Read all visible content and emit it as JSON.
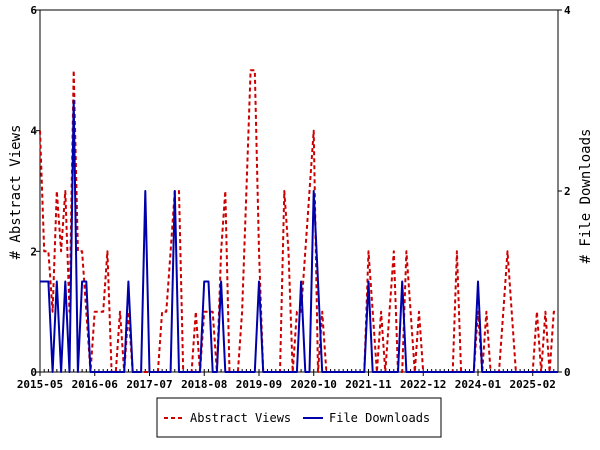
{
  "chart_data": {
    "type": "line",
    "xlabel": "",
    "ylabel_left": "# Abstract Views",
    "ylabel_right": "# File Downloads",
    "x_tick_labels": [
      "2015-05",
      "2016-06",
      "2017-07",
      "2018-08",
      "2019-09",
      "2020-10",
      "2021-11",
      "2022-12",
      "2024-01",
      "2025-02"
    ],
    "x_range": [
      "2015-05",
      "2025-08"
    ],
    "y_left": {
      "min": 0,
      "max": 6,
      "ticks": [
        0,
        2,
        4,
        6
      ]
    },
    "y_right": {
      "min": 0,
      "max": 4,
      "ticks": [
        0,
        2,
        4
      ]
    },
    "grid": false,
    "legend_position": "bottom-center",
    "series": [
      {
        "name": "Abstract Views",
        "axis": "left",
        "color": "#cc0000",
        "style": "dashed",
        "points": [
          [
            "2015-05",
            4
          ],
          [
            "2015-06",
            2
          ],
          [
            "2015-07",
            2
          ],
          [
            "2015-08",
            1
          ],
          [
            "2015-09",
            3
          ],
          [
            "2015-10",
            2
          ],
          [
            "2015-11",
            3
          ],
          [
            "2015-12",
            1
          ],
          [
            "2016-01",
            5
          ],
          [
            "2016-02",
            2
          ],
          [
            "2016-03",
            2
          ],
          [
            "2016-04",
            1
          ],
          [
            "2016-05",
            0
          ],
          [
            "2016-06",
            1
          ],
          [
            "2016-07",
            1
          ],
          [
            "2016-08",
            1
          ],
          [
            "2016-09",
            2
          ],
          [
            "2016-10",
            0
          ],
          [
            "2016-11",
            0
          ],
          [
            "2016-12",
            1
          ],
          [
            "2017-01",
            0
          ],
          [
            "2017-02",
            1
          ],
          [
            "2017-03",
            0
          ],
          [
            "2017-04",
            0
          ],
          [
            "2017-05",
            0
          ],
          [
            "2017-06",
            0
          ],
          [
            "2017-07",
            0
          ],
          [
            "2017-08",
            0
          ],
          [
            "2017-09",
            0
          ],
          [
            "2017-10",
            1
          ],
          [
            "2017-11",
            1
          ],
          [
            "2017-12",
            2
          ],
          [
            "2018-01",
            3
          ],
          [
            "2018-02",
            3
          ],
          [
            "2018-03",
            0
          ],
          [
            "2018-04",
            0
          ],
          [
            "2018-05",
            0
          ],
          [
            "2018-06",
            1
          ],
          [
            "2018-07",
            0
          ],
          [
            "2018-08",
            1
          ],
          [
            "2018-09",
            1
          ],
          [
            "2018-10",
            1
          ],
          [
            "2018-11",
            0
          ],
          [
            "2018-12",
            2
          ],
          [
            "2019-01",
            3
          ],
          [
            "2019-02",
            0
          ],
          [
            "2019-03",
            0
          ],
          [
            "2019-04",
            0
          ],
          [
            "2019-05",
            1
          ],
          [
            "2019-06",
            3
          ],
          [
            "2019-07",
            5
          ],
          [
            "2019-08",
            5
          ],
          [
            "2019-09",
            2
          ],
          [
            "2019-10",
            0
          ],
          [
            "2019-11",
            0
          ],
          [
            "2019-12",
            0
          ],
          [
            "2020-01",
            0
          ],
          [
            "2020-02",
            0
          ],
          [
            "2020-03",
            3
          ],
          [
            "2020-04",
            2
          ],
          [
            "2020-05",
            0
          ],
          [
            "2020-06",
            1
          ],
          [
            "2020-07",
            1
          ],
          [
            "2020-08",
            2
          ],
          [
            "2020-09",
            3
          ],
          [
            "2020-10",
            4
          ],
          [
            "2020-11",
            0
          ],
          [
            "2020-12",
            1
          ],
          [
            "2021-01",
            0
          ],
          [
            "2021-02",
            0
          ],
          [
            "2021-03",
            0
          ],
          [
            "2021-04",
            0
          ],
          [
            "2021-05",
            0
          ],
          [
            "2021-06",
            0
          ],
          [
            "2021-07",
            0
          ],
          [
            "2021-08",
            0
          ],
          [
            "2021-09",
            0
          ],
          [
            "2021-10",
            0
          ],
          [
            "2021-11",
            2
          ],
          [
            "2021-12",
            1
          ],
          [
            "2022-01",
            0
          ],
          [
            "2022-02",
            1
          ],
          [
            "2022-03",
            0
          ],
          [
            "2022-04",
            1
          ],
          [
            "2022-05",
            2
          ],
          [
            "2022-06",
            0
          ],
          [
            "2022-07",
            0
          ],
          [
            "2022-08",
            2
          ],
          [
            "2022-09",
            1
          ],
          [
            "2022-10",
            0
          ],
          [
            "2022-11",
            1
          ],
          [
            "2022-12",
            0
          ],
          [
            "2023-01",
            0
          ],
          [
            "2023-02",
            0
          ],
          [
            "2023-03",
            0
          ],
          [
            "2023-04",
            0
          ],
          [
            "2023-05",
            0
          ],
          [
            "2023-06",
            0
          ],
          [
            "2023-07",
            0
          ],
          [
            "2023-08",
            2
          ],
          [
            "2023-09",
            0
          ],
          [
            "2023-10",
            0
          ],
          [
            "2023-11",
            0
          ],
          [
            "2023-12",
            0
          ],
          [
            "2024-01",
            1
          ],
          [
            "2024-02",
            0
          ],
          [
            "2024-03",
            1
          ],
          [
            "2024-04",
            0
          ],
          [
            "2024-05",
            0
          ],
          [
            "2024-06",
            0
          ],
          [
            "2024-07",
            1
          ],
          [
            "2024-08",
            2
          ],
          [
            "2024-09",
            1
          ],
          [
            "2024-10",
            0
          ],
          [
            "2024-11",
            0
          ],
          [
            "2024-12",
            0
          ],
          [
            "2025-01",
            0
          ],
          [
            "2025-02",
            0
          ],
          [
            "2025-03",
            1
          ],
          [
            "2025-04",
            0
          ],
          [
            "2025-05",
            1
          ],
          [
            "2025-06",
            0
          ],
          [
            "2025-07",
            1
          ],
          [
            "2025-08",
            1
          ]
        ]
      },
      {
        "name": "File Downloads",
        "axis": "right",
        "color": "#0000aa",
        "style": "solid",
        "points": [
          [
            "2015-05",
            1
          ],
          [
            "2015-06",
            1
          ],
          [
            "2015-07",
            1
          ],
          [
            "2015-08",
            0
          ],
          [
            "2015-09",
            1
          ],
          [
            "2015-10",
            0
          ],
          [
            "2015-11",
            1
          ],
          [
            "2015-12",
            0
          ],
          [
            "2016-01",
            3
          ],
          [
            "2016-02",
            0
          ],
          [
            "2016-03",
            1
          ],
          [
            "2016-04",
            1
          ],
          [
            "2016-05",
            0
          ],
          [
            "2016-06",
            0
          ],
          [
            "2016-07",
            0
          ],
          [
            "2016-08",
            0
          ],
          [
            "2016-09",
            0
          ],
          [
            "2016-10",
            0
          ],
          [
            "2016-11",
            0
          ],
          [
            "2016-12",
            0
          ],
          [
            "2017-01",
            0
          ],
          [
            "2017-02",
            1
          ],
          [
            "2017-03",
            0
          ],
          [
            "2017-04",
            0
          ],
          [
            "2017-05",
            0
          ],
          [
            "2017-06",
            2
          ],
          [
            "2017-07",
            0
          ],
          [
            "2017-08",
            0
          ],
          [
            "2017-09",
            0
          ],
          [
            "2017-10",
            0
          ],
          [
            "2017-11",
            0
          ],
          [
            "2017-12",
            0
          ],
          [
            "2018-01",
            2
          ],
          [
            "2018-02",
            0
          ],
          [
            "2018-03",
            0
          ],
          [
            "2018-04",
            0
          ],
          [
            "2018-05",
            0
          ],
          [
            "2018-06",
            0
          ],
          [
            "2018-07",
            0
          ],
          [
            "2018-08",
            1
          ],
          [
            "2018-09",
            1
          ],
          [
            "2018-10",
            0
          ],
          [
            "2018-11",
            0
          ],
          [
            "2018-12",
            1
          ],
          [
            "2019-01",
            0
          ],
          [
            "2019-02",
            0
          ],
          [
            "2019-03",
            0
          ],
          [
            "2019-04",
            0
          ],
          [
            "2019-05",
            0
          ],
          [
            "2019-06",
            0
          ],
          [
            "2019-07",
            0
          ],
          [
            "2019-08",
            0
          ],
          [
            "2019-09",
            1
          ],
          [
            "2019-10",
            0
          ],
          [
            "2019-11",
            0
          ],
          [
            "2019-12",
            0
          ],
          [
            "2020-01",
            0
          ],
          [
            "2020-02",
            0
          ],
          [
            "2020-03",
            0
          ],
          [
            "2020-04",
            0
          ],
          [
            "2020-05",
            0
          ],
          [
            "2020-06",
            0
          ],
          [
            "2020-07",
            1
          ],
          [
            "2020-08",
            0
          ],
          [
            "2020-09",
            0
          ],
          [
            "2020-10",
            2
          ],
          [
            "2020-11",
            1
          ],
          [
            "2020-12",
            0
          ],
          [
            "2021-01",
            0
          ],
          [
            "2021-02",
            0
          ],
          [
            "2021-03",
            0
          ],
          [
            "2021-04",
            0
          ],
          [
            "2021-05",
            0
          ],
          [
            "2021-06",
            0
          ],
          [
            "2021-07",
            0
          ],
          [
            "2021-08",
            0
          ],
          [
            "2021-09",
            0
          ],
          [
            "2021-10",
            0
          ],
          [
            "2021-11",
            1
          ],
          [
            "2021-12",
            0
          ],
          [
            "2022-01",
            0
          ],
          [
            "2022-02",
            0
          ],
          [
            "2022-03",
            0
          ],
          [
            "2022-04",
            0
          ],
          [
            "2022-05",
            0
          ],
          [
            "2022-06",
            0
          ],
          [
            "2022-07",
            1
          ],
          [
            "2022-08",
            0
          ],
          [
            "2022-09",
            0
          ],
          [
            "2022-10",
            0
          ],
          [
            "2022-11",
            0
          ],
          [
            "2022-12",
            0
          ],
          [
            "2023-01",
            0
          ],
          [
            "2023-02",
            0
          ],
          [
            "2023-03",
            0
          ],
          [
            "2023-04",
            0
          ],
          [
            "2023-05",
            0
          ],
          [
            "2023-06",
            0
          ],
          [
            "2023-07",
            0
          ],
          [
            "2023-08",
            0
          ],
          [
            "2023-09",
            0
          ],
          [
            "2023-10",
            0
          ],
          [
            "2023-11",
            0
          ],
          [
            "2023-12",
            0
          ],
          [
            "2024-01",
            1
          ],
          [
            "2024-02",
            0
          ],
          [
            "2024-03",
            0
          ],
          [
            "2024-04",
            0
          ],
          [
            "2024-05",
            0
          ],
          [
            "2024-06",
            0
          ],
          [
            "2024-07",
            0
          ],
          [
            "2024-08",
            0
          ],
          [
            "2024-09",
            0
          ],
          [
            "2024-10",
            0
          ],
          [
            "2024-11",
            0
          ],
          [
            "2024-12",
            0
          ],
          [
            "2025-01",
            0
          ],
          [
            "2025-02",
            0
          ],
          [
            "2025-03",
            0
          ],
          [
            "2025-04",
            0
          ],
          [
            "2025-05",
            0
          ],
          [
            "2025-06",
            0
          ],
          [
            "2025-07",
            0
          ],
          [
            "2025-08",
            0
          ]
        ]
      }
    ]
  }
}
